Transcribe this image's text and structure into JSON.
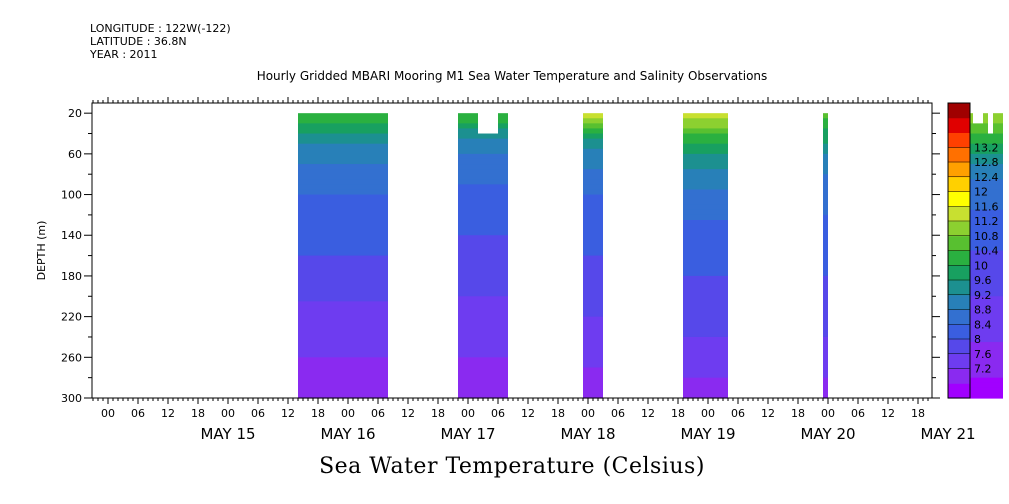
{
  "header": {
    "longitude": "LONGITUDE : 122W(-122)",
    "latitude": "LATITUDE : 36.8N",
    "year": "YEAR : 2011"
  },
  "chart_data": {
    "type": "heatmap",
    "title": "Hourly Gridded MBARI Mooring M1 Sea Water Temperature and Salinity Observations",
    "xlabel": "Sea Water Temperature (Celsius)",
    "ylabel": "DEPTH (m)",
    "x_unit": "hours since May 14 00:00 (2011)",
    "xlim": [
      0,
      168
    ],
    "ylim": [
      300,
      10
    ],
    "y_ticks": [
      20,
      60,
      100,
      140,
      180,
      220,
      260,
      300
    ],
    "hour_tick_labels": [
      "00",
      "06",
      "12",
      "18",
      "00",
      "06",
      "12",
      "18",
      "00",
      "06",
      "12",
      "18",
      "00",
      "06",
      "12",
      "18",
      "00",
      "06",
      "12",
      "18",
      "00",
      "06",
      "12",
      "18",
      "00",
      "06",
      "12",
      "18"
    ],
    "hour_tick_positions": [
      0,
      6,
      12,
      18,
      24,
      30,
      36,
      42,
      48,
      54,
      60,
      66,
      72,
      78,
      84,
      90,
      96,
      102,
      108,
      114,
      120,
      126,
      132,
      138,
      144,
      150,
      156,
      162
    ],
    "day_labels": [
      {
        "text": "MAY 15",
        "at": 36
      },
      {
        "text": "MAY 16",
        "at": 60
      },
      {
        "text": "MAY 17",
        "at": 84
      },
      {
        "text": "MAY 18",
        "at": 108
      },
      {
        "text": "MAY 19",
        "at": 132
      },
      {
        "text": "MAY 20",
        "at": 156
      },
      {
        "text": "MAY 21",
        "at": 180
      }
    ],
    "colorbar": {
      "levels": [
        7.2,
        7.6,
        8,
        8.4,
        8.8,
        9.2,
        9.6,
        10,
        10.4,
        10.8,
        11.2,
        11.6,
        12,
        12.4,
        12.8,
        13.2
      ],
      "colors": [
        "#a100ff",
        "#8a2af0",
        "#6e3cf0",
        "#5648ea",
        "#3a5ee0",
        "#3370d0",
        "#2880b8",
        "#1c9090",
        "#18a060",
        "#2ab040",
        "#58c030",
        "#8cd030",
        "#c8e030",
        "#ffff00",
        "#ffd000",
        "#ffa000",
        "#ff7000",
        "#ff4000",
        "#e00000",
        "#a00000"
      ]
    },
    "segments": [
      {
        "x0": 38,
        "x1": 56,
        "profile": [
          [
            20,
            10.1
          ],
          [
            40,
            9.6
          ],
          [
            60,
            9.1
          ],
          [
            80,
            8.9
          ],
          [
            100,
            8.7
          ],
          [
            140,
            8.5
          ],
          [
            180,
            8.3
          ],
          [
            220,
            8.0
          ],
          [
            260,
            7.8
          ],
          [
            300,
            7.5
          ]
        ]
      },
      {
        "x0": 70,
        "x1": 80,
        "profile": [
          [
            20,
            10.2
          ],
          [
            40,
            9.4
          ],
          [
            60,
            9.0
          ],
          [
            80,
            8.8
          ],
          [
            100,
            8.6
          ],
          [
            140,
            8.4
          ],
          [
            180,
            8.2
          ],
          [
            220,
            8.0
          ],
          [
            260,
            7.8
          ],
          [
            300,
            7.6
          ]
        ]
      },
      {
        "x0": 95,
        "x1": 99,
        "profile": [
          [
            20,
            11.2
          ],
          [
            40,
            9.8
          ],
          [
            60,
            9.2
          ],
          [
            80,
            8.9
          ],
          [
            100,
            8.7
          ],
          [
            140,
            8.5
          ],
          [
            180,
            8.3
          ],
          [
            220,
            8.1
          ],
          [
            260,
            7.9
          ],
          [
            300,
            7.5
          ]
        ]
      },
      {
        "x0": 115,
        "x1": 124,
        "profile": [
          [
            20,
            11.0
          ],
          [
            40,
            10.2
          ],
          [
            60,
            9.6
          ],
          [
            80,
            9.2
          ],
          [
            100,
            8.9
          ],
          [
            140,
            8.6
          ],
          [
            180,
            8.4
          ],
          [
            220,
            8.2
          ],
          [
            260,
            8.0
          ],
          [
            300,
            7.6
          ]
        ]
      },
      {
        "x0": 143,
        "x1": 144,
        "profile": [
          [
            20,
            10.4
          ],
          [
            40,
            9.8
          ],
          [
            60,
            9.3
          ],
          [
            80,
            9.0
          ],
          [
            100,
            8.8
          ],
          [
            140,
            8.6
          ],
          [
            180,
            8.4
          ],
          [
            220,
            8.2
          ],
          [
            260,
            8.0
          ],
          [
            300,
            7.6
          ]
        ]
      },
      {
        "x0": 168,
        "x1": 179,
        "profile": [
          [
            20,
            10.8
          ],
          [
            40,
            10.2
          ],
          [
            60,
            9.6
          ],
          [
            80,
            9.1
          ],
          [
            100,
            8.8
          ],
          [
            140,
            8.5
          ],
          [
            180,
            8.2
          ],
          [
            220,
            8.0
          ],
          [
            260,
            7.7
          ],
          [
            300,
            7.3
          ]
        ]
      }
    ],
    "gaps": [
      {
        "x0": 74,
        "x1": 78,
        "depth_top": 20,
        "depth_bottom": 40
      },
      {
        "x0": 173,
        "x1": 175,
        "depth_top": 20,
        "depth_bottom": 30
      },
      {
        "x0": 176,
        "x1": 177,
        "depth_top": 20,
        "depth_bottom": 40
      }
    ]
  }
}
